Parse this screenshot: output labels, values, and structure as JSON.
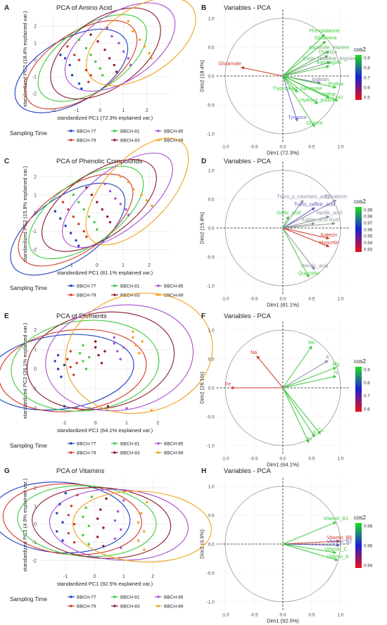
{
  "groups": [
    {
      "name": "BBCH-77",
      "color": "#1f3fbf"
    },
    {
      "name": "BBCH-79",
      "color": "#d0392a"
    },
    {
      "name": "BBCH-81",
      "color": "#3ec93e"
    },
    {
      "name": "BBCH-83",
      "color": "#8b1a2a"
    },
    {
      "name": "BBCH-85",
      "color": "#a54fd6"
    },
    {
      "name": "BBCH-89",
      "color": "#f0a21a"
    }
  ],
  "legend_title": "Sampling Time",
  "chart_data": [
    {
      "letter": "A",
      "type": "scatter",
      "title": "PCA of Amino Acid",
      "xlabel": "standardized PC1 (72.3% explained var.)",
      "ylabel": "standardized PC2 (18.4% explained var.)",
      "xlim": [
        -2.6,
        3.0
      ],
      "ylim": [
        -2.7,
        2.8
      ],
      "xticks": [
        -2,
        -1,
        0,
        1,
        2
      ],
      "yticks": [
        -2,
        -1,
        0,
        1,
        2
      ],
      "points": [
        [
          -1.7,
          0.3,
          0
        ],
        [
          -1.5,
          0.1,
          0
        ],
        [
          -1.3,
          -0.3,
          0
        ],
        [
          -1.2,
          -0.9,
          0
        ],
        [
          -0.9,
          -1.4,
          0
        ],
        [
          -0.8,
          -1.7,
          0
        ],
        [
          -1.4,
          0.8,
          1
        ],
        [
          -1.1,
          0.3,
          1
        ],
        [
          -0.9,
          0.0,
          1
        ],
        [
          -0.6,
          -0.6,
          1
        ],
        [
          -0.4,
          -0.9,
          1
        ],
        [
          -0.5,
          -1.3,
          1
        ],
        [
          -0.9,
          1.2,
          2
        ],
        [
          -0.6,
          0.7,
          2
        ],
        [
          -0.4,
          0.3,
          2
        ],
        [
          -0.2,
          -0.1,
          2
        ],
        [
          0.0,
          -0.5,
          2
        ],
        [
          0.1,
          -0.9,
          2
        ],
        [
          -0.4,
          1.5,
          3
        ],
        [
          -0.1,
          1.1,
          3
        ],
        [
          0.2,
          0.6,
          3
        ],
        [
          0.4,
          0.1,
          3
        ],
        [
          0.6,
          -0.3,
          3
        ],
        [
          0.7,
          -0.7,
          3
        ],
        [
          0.3,
          1.9,
          4
        ],
        [
          0.5,
          1.4,
          4
        ],
        [
          0.8,
          1.0,
          4
        ],
        [
          1.0,
          0.5,
          4
        ],
        [
          1.2,
          0.1,
          4
        ],
        [
          1.3,
          -0.3,
          4
        ],
        [
          1.2,
          2.3,
          5
        ],
        [
          1.4,
          1.7,
          5
        ],
        [
          1.7,
          1.2,
          5
        ],
        [
          1.9,
          0.8,
          5
        ],
        [
          2.1,
          0.4,
          5
        ],
        [
          2.2,
          0.1,
          5
        ]
      ]
    },
    {
      "letter": "C",
      "type": "scatter",
      "title": "PCA of Phenolic Compounds",
      "xlabel": "standardized PC1 (81.1% explained var.)",
      "ylabel": "standardized PC2 (15.8% explained var.)",
      "xlim": [
        -2.2,
        2.8
      ],
      "ylim": [
        -2.6,
        2.5
      ],
      "xticks": [
        -1,
        0,
        1,
        2
      ],
      "yticks": [
        -2,
        -1,
        0,
        1,
        2
      ],
      "points": [
        [
          -1.6,
          0.1,
          0
        ],
        [
          -1.4,
          -0.3,
          0
        ],
        [
          -1.2,
          -0.7,
          0
        ],
        [
          -1.0,
          -1.1,
          0
        ],
        [
          -0.8,
          -1.5,
          0
        ],
        [
          -0.7,
          -1.8,
          0
        ],
        [
          -1.3,
          0.6,
          1
        ],
        [
          -1.1,
          0.2,
          1
        ],
        [
          -0.9,
          -0.2,
          1
        ],
        [
          -0.7,
          -0.6,
          1
        ],
        [
          -0.5,
          -1.0,
          1
        ],
        [
          -0.4,
          -1.3,
          1
        ],
        [
          -0.9,
          1.0,
          2
        ],
        [
          -0.7,
          0.6,
          2
        ],
        [
          -0.5,
          0.2,
          2
        ],
        [
          -0.3,
          -0.2,
          2
        ],
        [
          -0.1,
          -0.5,
          2
        ],
        [
          0.0,
          -0.9,
          2
        ],
        [
          -0.4,
          1.4,
          3
        ],
        [
          -0.2,
          1.0,
          3
        ],
        [
          0.0,
          0.6,
          3
        ],
        [
          0.2,
          0.2,
          3
        ],
        [
          0.4,
          -0.2,
          3
        ],
        [
          0.5,
          -0.5,
          3
        ],
        [
          0.3,
          1.6,
          4
        ],
        [
          0.5,
          1.2,
          4
        ],
        [
          0.7,
          0.8,
          4
        ],
        [
          0.9,
          0.5,
          4
        ],
        [
          1.1,
          0.2,
          4
        ],
        [
          1.2,
          -0.1,
          4
        ],
        [
          0.9,
          2.0,
          5
        ],
        [
          1.2,
          1.7,
          5
        ],
        [
          1.4,
          1.3,
          5
        ],
        [
          1.7,
          1.0,
          5
        ],
        [
          1.9,
          0.7,
          5
        ],
        [
          2.1,
          0.4,
          5
        ]
      ]
    },
    {
      "letter": "E",
      "type": "scatter",
      "title": "PCA of Elements",
      "xlabel": "standardized PC1 (64.1% explained var.)",
      "ylabel": "standardized PC2 (26.1% explained var.)",
      "xlim": [
        -1.8,
        2.4
      ],
      "ylim": [
        -2.5,
        2.3
      ],
      "xticks": [
        -1,
        0,
        1,
        2
      ],
      "yticks": [
        -2,
        -1,
        0,
        1,
        2
      ],
      "points": [
        [
          -1.3,
          0.4,
          0
        ],
        [
          -1.2,
          0.0,
          0
        ],
        [
          -1.1,
          -0.4,
          0
        ],
        [
          -1.2,
          0.7,
          0
        ],
        [
          -1.0,
          0.2,
          0
        ],
        [
          -1.0,
          -1.9,
          0
        ],
        [
          -0.9,
          0.5,
          1
        ],
        [
          -0.8,
          0.1,
          1
        ],
        [
          -0.7,
          -0.3,
          1
        ],
        [
          -0.8,
          0.9,
          1
        ],
        [
          -0.6,
          0.3,
          1
        ],
        [
          -0.6,
          -2.0,
          1
        ],
        [
          -0.5,
          0.8,
          2
        ],
        [
          -0.4,
          0.4,
          2
        ],
        [
          -0.3,
          0.0,
          2
        ],
        [
          -0.4,
          1.2,
          2
        ],
        [
          -0.2,
          0.6,
          2
        ],
        [
          -0.2,
          -2.0,
          2
        ],
        [
          0.0,
          1.1,
          3
        ],
        [
          0.1,
          0.7,
          3
        ],
        [
          0.2,
          0.3,
          3
        ],
        [
          0.0,
          1.4,
          3
        ],
        [
          0.3,
          0.9,
          3
        ],
        [
          0.4,
          -1.9,
          3
        ],
        [
          0.6,
          1.3,
          4
        ],
        [
          0.7,
          0.9,
          4
        ],
        [
          0.8,
          0.5,
          4
        ],
        [
          0.6,
          1.6,
          4
        ],
        [
          0.9,
          1.1,
          4
        ],
        [
          1.0,
          -2.0,
          4
        ],
        [
          1.2,
          1.6,
          5
        ],
        [
          1.3,
          1.2,
          5
        ],
        [
          1.4,
          0.8,
          5
        ],
        [
          1.2,
          1.9,
          5
        ],
        [
          1.5,
          1.4,
          5
        ],
        [
          1.8,
          -2.1,
          5
        ]
      ]
    },
    {
      "letter": "G",
      "type": "scatter",
      "title": "PCA of Vitamins",
      "xlabel": "standardized PC1 (92.5% explained var.)",
      "ylabel": "standardized PC2 (4.9% explained var.)",
      "xlim": [
        -1.9,
        2.6
      ],
      "ylim": [
        -2.6,
        2.5
      ],
      "xticks": [
        -1,
        0,
        1,
        2
      ],
      "yticks": [
        -2,
        -1,
        0,
        1,
        2
      ],
      "points": [
        [
          -1.2,
          1.1,
          0
        ],
        [
          -1.3,
          0.6,
          0
        ],
        [
          -1.1,
          0.1,
          0
        ],
        [
          -1.3,
          -0.4,
          0
        ],
        [
          -1.1,
          -0.9,
          0
        ],
        [
          -1.0,
          1.7,
          0
        ],
        [
          -0.8,
          1.0,
          1
        ],
        [
          -0.9,
          0.5,
          1
        ],
        [
          -0.7,
          0.0,
          1
        ],
        [
          -0.9,
          -0.5,
          1
        ],
        [
          -0.7,
          -1.0,
          1
        ],
        [
          -0.6,
          1.6,
          1
        ],
        [
          -0.3,
          0.9,
          2
        ],
        [
          -0.4,
          0.4,
          2
        ],
        [
          -0.2,
          -0.1,
          2
        ],
        [
          -0.4,
          -0.6,
          2
        ],
        [
          -0.2,
          -1.1,
          2
        ],
        [
          -0.1,
          1.5,
          2
        ],
        [
          0.2,
          0.8,
          3
        ],
        [
          0.1,
          0.3,
          3
        ],
        [
          0.3,
          -0.2,
          3
        ],
        [
          0.1,
          -0.7,
          3
        ],
        [
          0.3,
          -1.2,
          3
        ],
        [
          0.4,
          1.4,
          3
        ],
        [
          0.8,
          0.7,
          4
        ],
        [
          0.7,
          0.2,
          4
        ],
        [
          0.9,
          -0.3,
          4
        ],
        [
          0.7,
          -0.8,
          4
        ],
        [
          0.9,
          -1.3,
          4
        ],
        [
          1.0,
          1.3,
          4
        ],
        [
          1.6,
          0.6,
          5
        ],
        [
          1.5,
          0.1,
          5
        ],
        [
          1.7,
          -0.4,
          5
        ],
        [
          1.5,
          -0.9,
          5
        ],
        [
          1.7,
          -1.4,
          5
        ],
        [
          1.8,
          1.2,
          5
        ]
      ]
    },
    {
      "letter": "B",
      "type": "biplot",
      "title": "Variables - PCA",
      "xlabel": "Dim1 (72.3%)",
      "ylabel": "Dim2 (18.4%)",
      "legend": "cos2",
      "scale_ticks": [
        "0.9",
        "0.8",
        "0.7",
        "0.6",
        "0.5"
      ],
      "scale_colors": [
        "#22dd22",
        "#1a20d8",
        "#ee1111"
      ],
      "vars": [
        {
          "label": "Phenylalanine",
          "x": 0.72,
          "y": 0.72,
          "color": "#3ec93e"
        },
        {
          "label": "Glutamine",
          "x": 0.74,
          "y": 0.6,
          "color": "#3ec93e"
        },
        {
          "label": "Aspartate_Alanine",
          "x": 0.8,
          "y": 0.43,
          "color": "#52b852"
        },
        {
          "label": "Thionine",
          "x": 0.78,
          "y": 0.35,
          "color": "#6aa86a"
        },
        {
          "label": "Cerin_Histidine_Arginine",
          "x": 0.82,
          "y": 0.24,
          "color": "#6c9a7a"
        },
        {
          "label": "Asparagine",
          "x": 0.8,
          "y": 0.17,
          "color": "#3ec93e"
        },
        {
          "label": "Glutamate",
          "x": -0.72,
          "y": 0.15,
          "color": "#d0392a"
        },
        {
          "label": "Isolosin",
          "x": 0.65,
          "y": -0.12,
          "color": "#7a7aa0"
        },
        {
          "label": "Proline",
          "x": 0.92,
          "y": -0.2,
          "color": "#3ec93e"
        },
        {
          "label": "Tryptophan_Sarcosine",
          "x": 0.25,
          "y": -0.28,
          "color": "#3ec93e"
        },
        {
          "label": "Valine",
          "x": 0.8,
          "y": -0.38,
          "color": "#3ec93e"
        },
        {
          "label": "Lisin",
          "x": 0.95,
          "y": -0.43,
          "color": "#3ec93e"
        },
        {
          "label": "Hydroxy_proline",
          "x": 0.6,
          "y": -0.48,
          "color": "#3ec93e"
        },
        {
          "label": "Tyrosine",
          "x": 0.25,
          "y": -0.78,
          "color": "#6a6ad0"
        },
        {
          "label": "Glycine",
          "x": 0.55,
          "y": -0.88,
          "color": "#3ec93e"
        }
      ]
    },
    {
      "letter": "D",
      "type": "biplot",
      "title": "Variables - PCA",
      "xlabel": "Dim1 (81.1%)",
      "ylabel": "Dim2 (15.8%)",
      "legend": "cos2",
      "scale_ticks": [
        "0.99",
        "0.98",
        "0.97",
        "0.96",
        "0.95",
        "0.94",
        "0.93"
      ],
      "scale_colors": [
        "#22dd22",
        "#1a20d8",
        "#ee1111"
      ],
      "vars": [
        {
          "label": "Trans_p_coumaric_acid",
          "x": 0.35,
          "y": 0.48,
          "color": "#8a8aa8"
        },
        {
          "label": "Epicatecin",
          "x": 0.92,
          "y": 0.48,
          "color": "#8a8aa8"
        },
        {
          "label": "Trans_caffeic_acid",
          "x": 0.55,
          "y": 0.35,
          "color": "#5a5ab8"
        },
        {
          "label": "Gallic_acid",
          "x": 0.1,
          "y": 0.2,
          "color": "#3ec93e"
        },
        {
          "label": "Vanilic_acid",
          "x": 0.8,
          "y": 0.2,
          "color": "#8a8aa8"
        },
        {
          "label": "Kafeic_acid",
          "x": 0.55,
          "y": 0.08,
          "color": "#8a9a8a"
        },
        {
          "label": "Rutin",
          "x": 0.9,
          "y": 0.08,
          "color": "#8a9a8a"
        },
        {
          "label": "Katesin",
          "x": 0.8,
          "y": -0.18,
          "color": "#d0392a"
        },
        {
          "label": "Myricetin",
          "x": 0.8,
          "y": -0.32,
          "color": "#d0392a"
        },
        {
          "label": "Ferulic_acid",
          "x": 0.55,
          "y": -0.72,
          "color": "#8a8aa8"
        },
        {
          "label": "Quercetin",
          "x": 0.45,
          "y": -0.85,
          "color": "#3ec93e"
        }
      ]
    },
    {
      "letter": "F",
      "type": "biplot",
      "title": "Variables - PCA",
      "xlabel": "Dim1 (64.1%)",
      "ylabel": "Dim2 (26.1%)",
      "legend": "cos2",
      "scale_ticks": [
        "0.9",
        "0.8",
        "0.7",
        "0.6"
      ],
      "scale_colors": [
        "#22dd22",
        "#1a20d8",
        "#ee1111"
      ],
      "vars": [
        {
          "label": "Na",
          "x": -0.45,
          "y": 0.55,
          "color": "#d0392a"
        },
        {
          "label": "Mn",
          "x": 0.5,
          "y": 0.72,
          "color": "#3ec93e"
        },
        {
          "label": "K",
          "x": 0.78,
          "y": 0.47,
          "color": "#8a8aa8"
        },
        {
          "label": "Mg",
          "x": 0.92,
          "y": 0.35,
          "color": "#3ec93e"
        },
        {
          "label": "N",
          "x": 0.92,
          "y": 0.2,
          "color": "#3ec93e"
        },
        {
          "label": "Fe",
          "x": -0.9,
          "y": 0.0,
          "color": "#d0392a"
        },
        {
          "label": "Cu",
          "x": 0.65,
          "y": -0.8,
          "color": "#3ec93e"
        },
        {
          "label": "P",
          "x": 0.55,
          "y": -0.85,
          "color": "#3ec93e"
        },
        {
          "label": "Zn",
          "x": 0.45,
          "y": -0.95,
          "color": "#3ec93e"
        }
      ]
    },
    {
      "letter": "H",
      "type": "biplot",
      "title": "Variables - PCA",
      "xlabel": "Dim1 (92.5%)",
      "ylabel": "Dim2 (4.9%)",
      "legend": "cos2",
      "scale_ticks": [
        "0.98",
        "0.96",
        "0.94"
      ],
      "scale_colors": [
        "#22dd22",
        "#1a20d8",
        "#ee1111"
      ],
      "vars": [
        {
          "label": "Vitamin_B1",
          "x": 0.92,
          "y": 0.38,
          "color": "#3ec93e"
        },
        {
          "label": "Vitamin_B6",
          "x": 0.98,
          "y": 0.05,
          "color": "#d0392a"
        },
        {
          "label": "Vitamin_B2",
          "x": 0.98,
          "y": -0.02,
          "color": "#5a5ab8"
        },
        {
          "label": "Vitamin_C",
          "x": 0.92,
          "y": -0.15,
          "color": "#3ec93e"
        },
        {
          "label": "Vitamin_A",
          "x": 0.95,
          "y": -0.28,
          "color": "#3ec93e"
        }
      ]
    }
  ]
}
